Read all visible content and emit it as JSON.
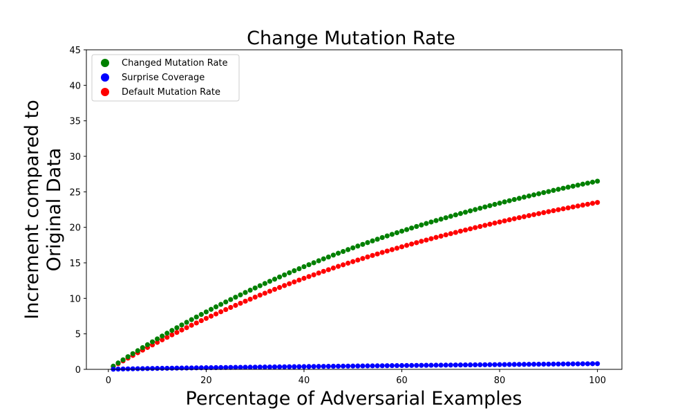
{
  "chart_data": {
    "type": "scatter",
    "title": "Change Mutation Rate",
    "xlabel": "Percentage of Adversarial Examples",
    "ylabel_lines": [
      "Increment compared to",
      "Original Data"
    ],
    "xlim": [
      -4.5,
      105
    ],
    "ylim": [
      0,
      45
    ],
    "xticks": [
      0,
      20,
      40,
      60,
      80,
      100
    ],
    "yticks": [
      0,
      5,
      10,
      15,
      20,
      25,
      30,
      35,
      40,
      45
    ],
    "grid": false,
    "legend_position": "top-left",
    "series": [
      {
        "name": "Changed Mutation Rate",
        "color": "#008000",
        "x_range": [
          1,
          100
        ],
        "y": [
          0.5,
          1.0,
          1.6,
          2.1,
          2.6,
          3.1,
          3.6,
          4.0,
          4.5,
          4.9,
          5.3,
          5.7,
          6.1,
          6.5,
          6.9,
          7.3,
          7.6,
          8.0,
          8.4,
          8.7,
          9.1,
          9.4,
          9.7,
          10.1,
          10.4,
          10.7,
          11.0,
          11.3,
          11.7,
          12.0,
          12.3,
          12.6,
          12.9,
          13.2,
          13.5,
          13.8,
          14.0,
          14.3,
          14.6,
          14.9,
          15.2,
          15.4,
          15.7,
          16.0,
          16.2,
          16.5,
          16.8,
          17.0,
          17.3,
          17.5,
          17.8,
          18.1,
          18.3,
          18.6,
          18.8,
          19.0,
          19.3,
          19.5,
          19.8,
          20.0,
          20.3,
          20.5,
          20.7,
          21.0,
          21.2,
          21.4,
          21.6,
          21.9,
          22.1,
          22.3,
          22.5,
          22.8,
          23.0,
          23.2,
          23.4,
          23.6,
          23.9,
          24.1,
          24.3,
          24.5,
          24.7,
          24.9,
          25.1,
          25.3,
          25.5,
          25.7,
          25.9,
          26.1,
          26.3,
          26.5,
          26.7,
          26.9,
          27.1,
          27.3,
          27.5,
          27.7,
          27.9,
          28.1,
          28.3,
          26.5
        ],
        "y_note_last": 26.5
      },
      {
        "name": "Surprise Coverage",
        "color": "#0000ff",
        "x_range": [
          1,
          100
        ],
        "y_start": 0.02,
        "y_end": 0.8
      },
      {
        "name": "Default Mutation Rate",
        "color": "#ff0000",
        "x_range": [
          1,
          100
        ],
        "y_end": 23.5
      }
    ]
  }
}
